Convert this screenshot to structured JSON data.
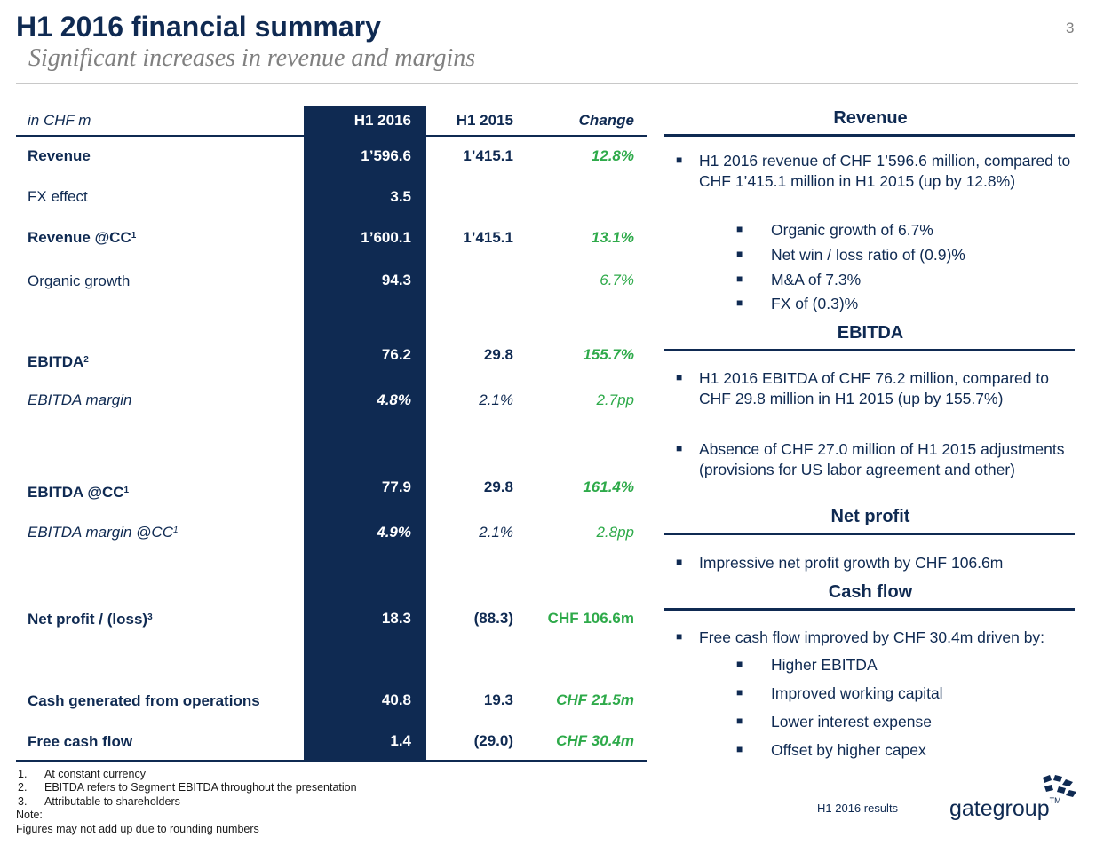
{
  "header": {
    "title": "H1 2016 financial summary",
    "subtitle": "Significant increases in revenue and margins",
    "page_number": "3"
  },
  "table": {
    "unit_label": "in CHF m",
    "col_h1_2016": "H1 2016",
    "col_h1_2015": "H1 2015",
    "col_change": "Change",
    "rows": [
      {
        "label": "Revenue",
        "sup": "",
        "h1_2016": "1’596.6",
        "h1_2015": "1’415.1",
        "change": "12.8%"
      },
      {
        "label": "FX effect",
        "sup": "",
        "h1_2016": "3.5",
        "h1_2015": "",
        "change": ""
      },
      {
        "label": "Revenue @CC",
        "sup": "1",
        "h1_2016": "1’600.1",
        "h1_2015": "1’415.1",
        "change": "13.1%"
      },
      {
        "label": "Organic growth",
        "sup": "",
        "h1_2016": "94.3",
        "h1_2015": "",
        "change": "6.7%"
      },
      {
        "label": "EBITDA",
        "sup": "2",
        "h1_2016": "76.2",
        "h1_2015": "29.8",
        "change": "155.7%"
      },
      {
        "label": "EBITDA margin",
        "sup": "",
        "h1_2016": "4.8%",
        "h1_2015": "2.1%",
        "change": "2.7pp"
      },
      {
        "label": "EBITDA @CC",
        "sup": "1",
        "h1_2016": "77.9",
        "h1_2015": "29.8",
        "change": "161.4%"
      },
      {
        "label": "EBITDA margin @CC",
        "sup": "1",
        "h1_2016": "4.9%",
        "h1_2015": "2.1%",
        "change": "2.8pp"
      },
      {
        "label": "Net profit / (loss)",
        "sup": "3",
        "h1_2016": "18.3",
        "h1_2015": "(88.3)",
        "change": "CHF 106.6m"
      },
      {
        "label": "Cash generated from operations",
        "sup": "",
        "h1_2016": "40.8",
        "h1_2015": "19.3",
        "change": "CHF 21.5m"
      },
      {
        "label": "Free cash flow",
        "sup": "",
        "h1_2016": "1.4",
        "h1_2015": "(29.0)",
        "change": "CHF 30.4m"
      }
    ]
  },
  "sections": {
    "revenue": {
      "heading": "Revenue",
      "bullet1": "H1 2016 revenue of CHF 1’596.6 million, compared to CHF 1’415.1 million in H1 2015 (up by 12.8%)",
      "sub": [
        "Organic growth of 6.7%",
        "Net win / loss ratio of (0.9)%",
        "M&A of 7.3%",
        "FX of (0.3)%"
      ]
    },
    "ebitda": {
      "heading": "EBITDA",
      "bullet1": "H1 2016 EBITDA of CHF 76.2 million, compared to CHF 29.8 million in H1 2015 (up by 155.7%)",
      "bullet2": "Absence of CHF 27.0 million of H1 2015 adjustments (provisions for US labor agreement and other)"
    },
    "net_profit": {
      "heading": "Net profit",
      "bullet1": "Impressive net profit growth by CHF 106.6m"
    },
    "cash_flow": {
      "heading": "Cash flow",
      "bullet1": "Free cash flow improved by CHF 30.4m driven by:",
      "sub": [
        "Higher EBITDA",
        "Improved working capital",
        "Lower interest expense",
        "Offset by higher capex"
      ]
    }
  },
  "footnotes": {
    "items": [
      {
        "num": "1.",
        "text": "At constant currency"
      },
      {
        "num": "2.",
        "text": "EBITDA refers to Segment EBITDA throughout the presentation"
      },
      {
        "num": "3.",
        "text": "Attributable to shareholders"
      }
    ],
    "note_label": "Note:",
    "note_text": "Figures may not add up due to rounding numbers"
  },
  "footer": {
    "doc_label": "H1 2016 results",
    "logo_text": "gategroup",
    "logo_tm": "TM"
  },
  "colors": {
    "navy": "#0f2a52",
    "green": "#2eaa4a",
    "grey": "#808080"
  }
}
